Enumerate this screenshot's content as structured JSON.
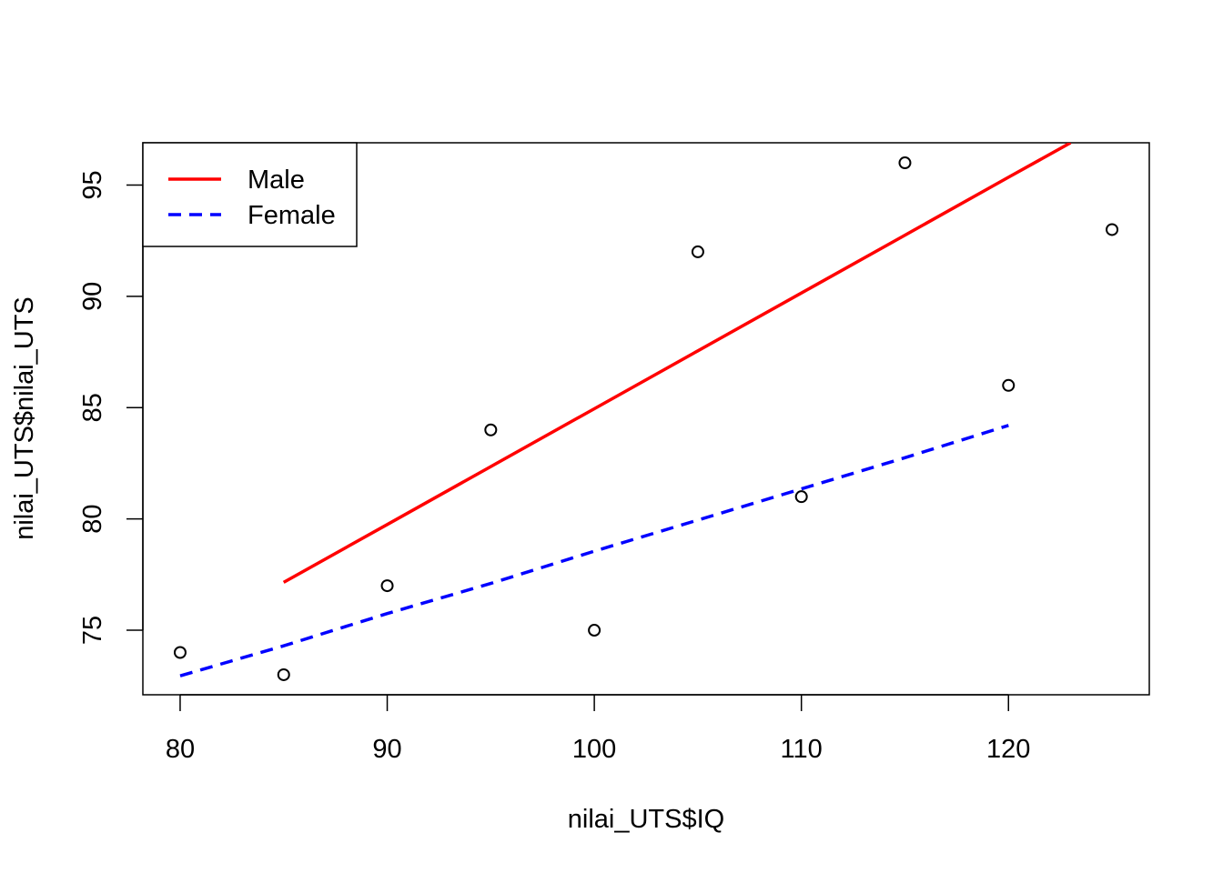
{
  "chart_data": {
    "type": "scatter",
    "title": "",
    "xlabel": "nilai_UTS$IQ",
    "ylabel": "nilai_UTS$nilai_UTS",
    "xlim": [
      78.2,
      126.8
    ],
    "ylim": [
      72.1,
      96.9
    ],
    "x_ticks": [
      80,
      90,
      100,
      110,
      120
    ],
    "y_ticks": [
      75,
      80,
      85,
      90,
      95
    ],
    "points": [
      {
        "x": 80,
        "y": 74
      },
      {
        "x": 85,
        "y": 73
      },
      {
        "x": 90,
        "y": 77
      },
      {
        "x": 95,
        "y": 84
      },
      {
        "x": 100,
        "y": 75
      },
      {
        "x": 105,
        "y": 92
      },
      {
        "x": 110,
        "y": 81
      },
      {
        "x": 115,
        "y": 96
      },
      {
        "x": 120,
        "y": 86
      },
      {
        "x": 125,
        "y": 93
      }
    ],
    "series": [
      {
        "name": "Male",
        "color": "#ff0000",
        "dash": "solid",
        "x": [
          85,
          90,
          95,
          100,
          105,
          110,
          115,
          120,
          123
        ],
        "y": [
          77.15,
          79.75,
          82.35,
          84.95,
          87.55,
          90.15,
          92.75,
          95.35,
          96.9
        ]
      },
      {
        "name": "Female",
        "color": "#0000ff",
        "dash": "dashed",
        "x": [
          80,
          85,
          90,
          95,
          100,
          105,
          110,
          115,
          120
        ],
        "y": [
          72.95,
          74.3,
          75.75,
          77.1,
          78.55,
          79.95,
          81.35,
          82.75,
          84.2
        ]
      }
    ],
    "legend": {
      "position": "top-left",
      "entries": [
        "Male",
        "Female"
      ]
    },
    "grid": false
  }
}
